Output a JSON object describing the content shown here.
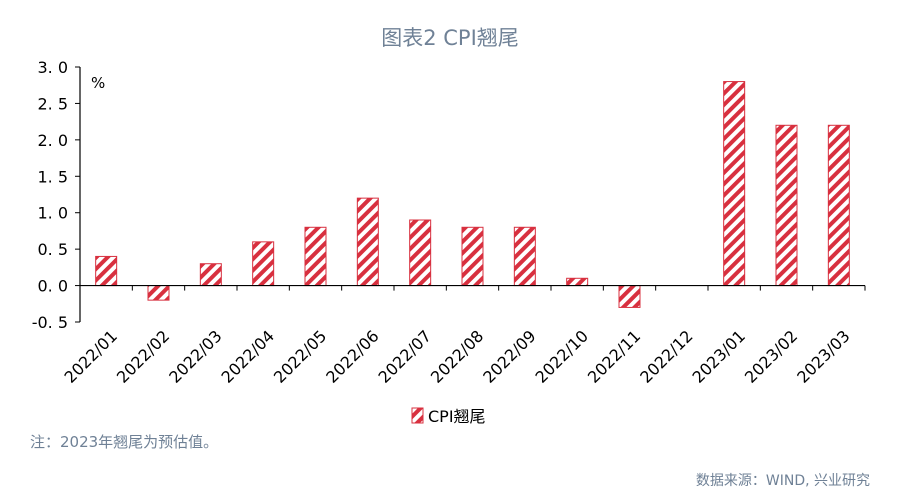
{
  "title": "图表2 CPI翘尾",
  "note": "注：2023年翘尾为预估值。",
  "source": "数据来源：WIND, 兴业研究",
  "colors": {
    "bar": "#d8303f",
    "text": "#6f8196",
    "axis": "#000000"
  },
  "chart_data": {
    "type": "bar",
    "title": "图表2 CPI翘尾",
    "ylabel": "%",
    "xlabel": "",
    "ylim": [
      -0.5,
      3.0
    ],
    "yticks": [
      3.0,
      2.5,
      2.0,
      1.5,
      1.0,
      0.5,
      0.0,
      -0.5
    ],
    "ytick_labels": [
      "3. 0",
      "2. 5",
      "2. 0",
      "1. 5",
      "1. 0",
      "0. 5",
      "0. 0",
      "-0. 5"
    ],
    "categories": [
      "2022/01",
      "2022/02",
      "2022/03",
      "2022/04",
      "2022/05",
      "2022/06",
      "2022/07",
      "2022/08",
      "2022/09",
      "2022/10",
      "2022/11",
      "2022/12",
      "2023/01",
      "2023/02",
      "2023/03"
    ],
    "series": [
      {
        "name": "CPI翘尾",
        "values": [
          0.4,
          -0.2,
          0.3,
          0.6,
          0.8,
          1.2,
          0.9,
          0.8,
          0.8,
          0.1,
          -0.3,
          0.0,
          2.8,
          2.2,
          2.2
        ]
      }
    ],
    "legend_position": "bottom",
    "grid": false
  }
}
